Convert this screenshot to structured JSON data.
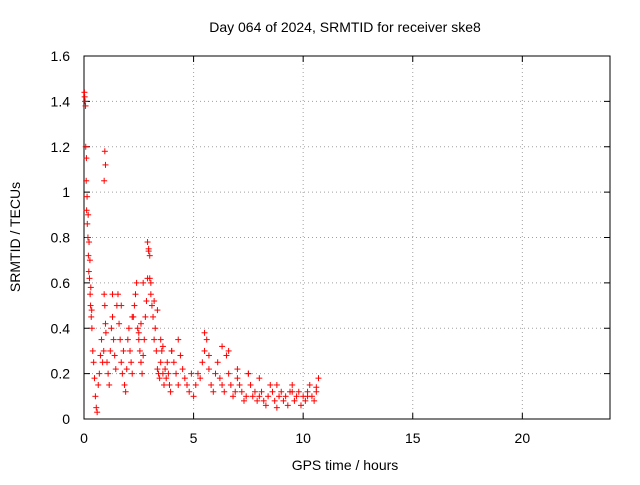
{
  "chart_data": {
    "type": "scatter",
    "title": "Day 064 of 2024, SRMTID for receiver ske8",
    "xlabel": "GPS time / hours",
    "ylabel": "SRMTID / TECUs",
    "xlim": [
      0,
      24
    ],
    "ylim": [
      0,
      1.6
    ],
    "xticks": [
      0,
      5,
      10,
      15,
      20
    ],
    "xtick_labels": [
      "0",
      "5",
      "10",
      "15",
      "20"
    ],
    "yticks": [
      0,
      0.2,
      0.4,
      0.6,
      0.8,
      1.0,
      1.2,
      1.4,
      1.6
    ],
    "ytick_labels": [
      "0",
      "0.2",
      "0.4",
      "0.6",
      "0.8",
      "1",
      "1.2",
      "1.4",
      "1.6"
    ],
    "grid": true,
    "marker": "+",
    "marker_color": "#ff0000",
    "series": [
      {
        "name": "SRMTID",
        "x": [
          0.02,
          0.05,
          0.08,
          0.1,
          0.12,
          0.15,
          0.18,
          0.2,
          0.22,
          0.25,
          0.28,
          0.3,
          0.33,
          0.36,
          0.4,
          0.44,
          0.48,
          0.52,
          0.56,
          0.6,
          0.65,
          0.7,
          0.75,
          0.8,
          0.85,
          0.9,
          0.92,
          0.95,
          0.98,
          1.0,
          1.05,
          1.1,
          1.15,
          1.2,
          1.25,
          1.3,
          1.35,
          1.4,
          1.45,
          1.5,
          1.55,
          1.6,
          1.65,
          1.7,
          1.75,
          1.8,
          1.85,
          1.9,
          1.95,
          2.0,
          2.05,
          2.1,
          2.15,
          2.2,
          2.25,
          2.3,
          2.35,
          2.4,
          2.45,
          2.5,
          2.55,
          2.6,
          2.65,
          2.7,
          2.75,
          2.8,
          2.85,
          2.9,
          2.95,
          3.0,
          3.05,
          3.1,
          3.15,
          3.2,
          3.25,
          3.3,
          3.35,
          3.4,
          3.45,
          3.5,
          3.55,
          3.6,
          3.65,
          3.7,
          3.75,
          3.8,
          3.85,
          3.9,
          3.95,
          4.0,
          4.1,
          4.2,
          4.3,
          4.4,
          4.5,
          4.6,
          4.7,
          4.8,
          4.9,
          5.0,
          5.1,
          5.2,
          5.3,
          5.4,
          5.5,
          5.6,
          5.7,
          5.8,
          5.9,
          6.0,
          6.1,
          6.2,
          6.3,
          6.4,
          6.5,
          6.6,
          6.7,
          6.8,
          6.9,
          7.0,
          7.1,
          7.2,
          7.3,
          7.4,
          7.5,
          7.6,
          7.7,
          7.8,
          7.9,
          8.0,
          8.1,
          8.2,
          8.3,
          8.4,
          8.5,
          8.6,
          8.7,
          8.8,
          8.9,
          9.0,
          9.1,
          9.2,
          9.3,
          9.4,
          9.5,
          9.6,
          9.7,
          9.8,
          9.9,
          10.0,
          10.1,
          10.2,
          10.3,
          10.4,
          10.5,
          10.6,
          10.7,
          0.03,
          0.07,
          0.11,
          0.14,
          0.19,
          0.23,
          0.27,
          0.31,
          0.35,
          0.95,
          0.98,
          0.92,
          2.9,
          2.95,
          3.0,
          3.05,
          2.7,
          3.2,
          3.35,
          1.3,
          1.7,
          2.2,
          2.5,
          2.6,
          3.5,
          3.6,
          4.0,
          4.3,
          5.5,
          5.7,
          6.3,
          6.6,
          7.0,
          7.5,
          8.0,
          8.8,
          9.5,
          10.2,
          10.6
        ],
        "y": [
          1.44,
          1.4,
          1.2,
          1.05,
          0.92,
          0.86,
          0.8,
          0.72,
          0.65,
          0.62,
          0.55,
          0.5,
          0.45,
          0.4,
          0.3,
          0.25,
          0.18,
          0.1,
          0.05,
          0.03,
          0.15,
          0.2,
          0.28,
          0.35,
          0.25,
          0.3,
          0.55,
          0.5,
          0.42,
          0.38,
          0.25,
          0.2,
          0.15,
          0.3,
          0.4,
          0.45,
          0.35,
          0.28,
          0.22,
          0.5,
          0.55,
          0.42,
          0.35,
          0.25,
          0.2,
          0.3,
          0.15,
          0.12,
          0.22,
          0.35,
          0.4,
          0.3,
          0.25,
          0.2,
          0.45,
          0.5,
          0.55,
          0.6,
          0.4,
          0.35,
          0.3,
          0.25,
          0.2,
          0.28,
          0.35,
          0.45,
          0.52,
          0.62,
          0.75,
          0.72,
          0.55,
          0.5,
          0.45,
          0.35,
          0.4,
          0.3,
          0.22,
          0.2,
          0.18,
          0.25,
          0.3,
          0.2,
          0.15,
          0.22,
          0.18,
          0.25,
          0.2,
          0.15,
          0.12,
          0.3,
          0.25,
          0.2,
          0.15,
          0.28,
          0.22,
          0.18,
          0.15,
          0.12,
          0.2,
          0.1,
          0.15,
          0.2,
          0.18,
          0.25,
          0.3,
          0.35,
          0.22,
          0.15,
          0.12,
          0.2,
          0.25,
          0.18,
          0.15,
          0.12,
          0.28,
          0.2,
          0.15,
          0.1,
          0.12,
          0.18,
          0.15,
          0.12,
          0.08,
          0.1,
          0.2,
          0.15,
          0.1,
          0.12,
          0.08,
          0.1,
          0.12,
          0.08,
          0.06,
          0.1,
          0.15,
          0.12,
          0.08,
          0.05,
          0.1,
          0.12,
          0.08,
          0.1,
          0.06,
          0.12,
          0.15,
          0.08,
          0.1,
          0.12,
          0.06,
          0.1,
          0.08,
          0.12,
          0.15,
          0.1,
          0.08,
          0.12,
          0.18,
          1.42,
          1.38,
          1.15,
          0.98,
          0.9,
          0.78,
          0.7,
          0.58,
          0.48,
          1.18,
          1.12,
          1.05,
          0.78,
          0.74,
          0.62,
          0.6,
          0.6,
          0.52,
          0.48,
          0.55,
          0.5,
          0.45,
          0.38,
          0.42,
          0.35,
          0.32,
          0.3,
          0.35,
          0.38,
          0.28,
          0.32,
          0.3,
          0.22,
          0.2,
          0.18,
          0.15,
          0.12,
          0.1,
          0.14
        ]
      }
    ]
  }
}
